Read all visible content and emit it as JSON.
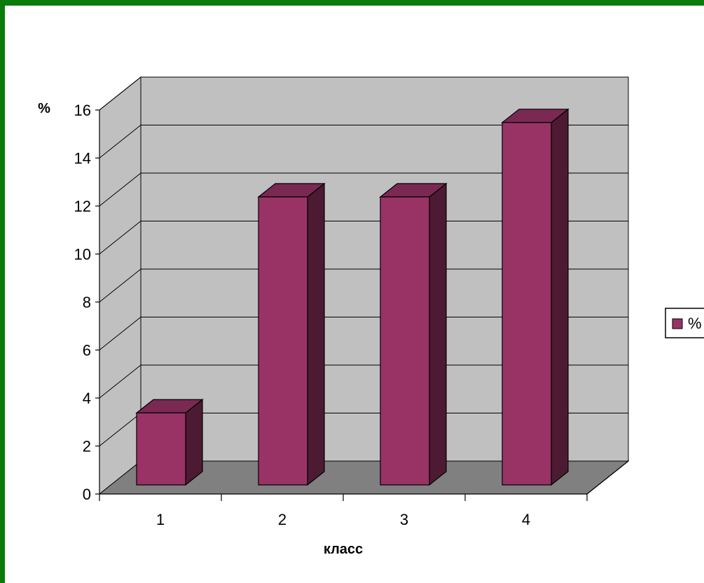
{
  "chart_data": {
    "type": "bar",
    "categories": [
      "1",
      "2",
      "3",
      "4"
    ],
    "series": [
      {
        "name": "%",
        "values": [
          3,
          12,
          12,
          15.1
        ]
      }
    ],
    "title": "",
    "xlabel": "класс",
    "ylabel": "%",
    "ylim": [
      0,
      16
    ],
    "yticks": [
      "0",
      "2",
      "4",
      "6",
      "8",
      "10",
      "12",
      "14",
      "16"
    ],
    "grid": true,
    "legend": "right",
    "colors": {
      "bar_front": "#993366",
      "bar_side": "#4d1a33",
      "bar_top": "#7a2952",
      "wall": "#c0c0c0",
      "floor": "#808080",
      "page_border": "#0a7a0a"
    }
  }
}
